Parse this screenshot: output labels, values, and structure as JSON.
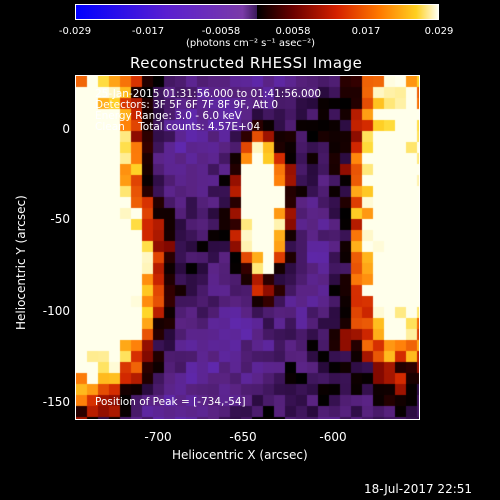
{
  "colorbar": {
    "ticks": [
      "-0.029",
      "-0.017",
      "-0.0058",
      "0.0058",
      "0.017",
      "0.029"
    ],
    "units": "(photons cm⁻² s⁻¹ asec⁻²)"
  },
  "title": "Reconstructed RHESSI Image",
  "annotations": {
    "time_range": "25-Jan-2015 01:31:56.000 to 01:41:56.000",
    "detectors": "Detectors: 3F 5F 6F 7F 8F 9F, Att 0",
    "energy": "Energy Range: 3.0 - 6.0 keV",
    "method": "Clean    Total counts: 4.57E+04",
    "peak": "Position of Peak = [-734,-54]"
  },
  "x_axis": {
    "label": "Heliocentric X (arcsec)",
    "ticks": [
      "-700",
      "-650",
      "-600"
    ]
  },
  "y_axis": {
    "label": "Heliocentric Y (arcsec)",
    "ticks": [
      "0",
      "-50",
      "-100",
      "-150"
    ]
  },
  "footer": {
    "timestamp": "18-Jul-2017 22:51"
  }
}
